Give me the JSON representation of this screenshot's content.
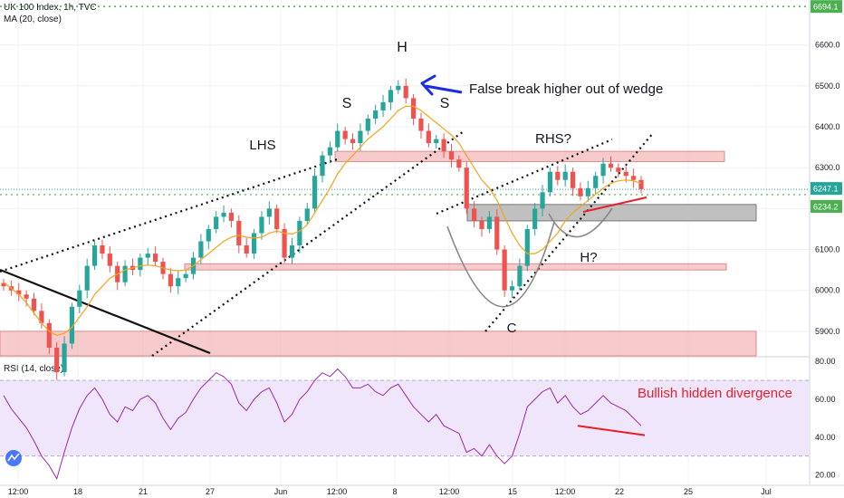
{
  "header": {
    "symbol_line": "UK 100 Index, 1h, TVC",
    "ma_line": "MA (20, close)",
    "rsi_line": "RSI (14, close)"
  },
  "colors": {
    "up": "#26a69a",
    "down": "#ef5350",
    "ma": "#f7a21b",
    "rsi": "#9c27b0",
    "zone_red": "#f4b9b9",
    "zone_gray": "#b9b9b9",
    "annotation_red": "#e8202a",
    "arrow_blue": "#1a2ee0"
  },
  "chart_data": [
    {
      "type": "candlestick",
      "title": "UK 100 Index, 1h, TVC",
      "ylim": [
        5840,
        6710
      ],
      "y_ticks": [
        "6600.0",
        "6500.0",
        "6400.0",
        "6300.0",
        "6200.0",
        "6100.0",
        "6000.0",
        "5900.0"
      ],
      "y_tick_values": [
        6600,
        6500,
        6400,
        6300,
        6200,
        6100,
        6000,
        5900
      ],
      "x_ticks": [
        "12:00",
        "18",
        "21",
        "27",
        "Jun",
        "12:00",
        "8",
        "12:00",
        "15",
        "12:00",
        "22",
        "25",
        "Jul"
      ],
      "price_labels": [
        {
          "text": "6694.1",
          "value": 6694.1,
          "color": "#4caf50"
        },
        {
          "text": "6247.1",
          "value": 6247.1,
          "color": "#26a69a"
        },
        {
          "text": "6234.2",
          "value": 6234.2,
          "color": "#4caf50"
        }
      ],
      "close_series": [
        6010,
        6000,
        5990,
        5980,
        5950,
        5920,
        5860,
        5800,
        5870,
        5960,
        6000,
        6060,
        6110,
        6090,
        6060,
        6020,
        6060,
        6050,
        6080,
        6090,
        6070,
        6040,
        6010,
        6030,
        6040,
        6080,
        6120,
        6150,
        6180,
        6190,
        6170,
        6110,
        6090,
        6140,
        6180,
        6200,
        6150,
        6080,
        6110,
        6170,
        6200,
        6280,
        6330,
        6350,
        6390,
        6370,
        6360,
        6390,
        6420,
        6440,
        6460,
        6490,
        6500,
        6470,
        6420,
        6390,
        6360,
        6370,
        6340,
        6320,
        6300,
        6200,
        6170,
        6150,
        6180,
        6100,
        6000,
        6010,
        6060,
        6150,
        6200,
        6240,
        6290,
        6270,
        6290,
        6250,
        6230,
        6250,
        6280,
        6310,
        6300,
        6290,
        6280,
        6270,
        6247.1
      ],
      "ma_series": [
        6020,
        6005,
        5990,
        5970,
        5945,
        5920,
        5900,
        5890,
        5895,
        5910,
        5935,
        5960,
        5990,
        6010,
        6030,
        6040,
        6050,
        6055,
        6060,
        6062,
        6060,
        6055,
        6050,
        6048,
        6050,
        6060,
        6075,
        6090,
        6105,
        6120,
        6130,
        6135,
        6130,
        6128,
        6130,
        6140,
        6145,
        6140,
        6138,
        6145,
        6160,
        6190,
        6220,
        6250,
        6285,
        6310,
        6330,
        6350,
        6370,
        6385,
        6400,
        6420,
        6440,
        6450,
        6450,
        6440,
        6425,
        6410,
        6395,
        6380,
        6360,
        6330,
        6300,
        6270,
        6250,
        6220,
        6180,
        6140,
        6110,
        6090,
        6090,
        6100,
        6120,
        6140,
        6170,
        6190,
        6205,
        6220,
        6235,
        6250,
        6262,
        6268,
        6270,
        6268,
        6262
      ],
      "zones": [
        {
          "label": "zone-upper-red",
          "from": 6315,
          "to": 6340,
          "color": "red"
        },
        {
          "label": "zone-mid-gray",
          "from": 6170,
          "to": 6210,
          "color": "gray"
        },
        {
          "label": "zone-low-red",
          "from": 6050,
          "to": 6065,
          "color": "red"
        },
        {
          "label": "zone-bottom-red",
          "from": 5840,
          "to": 5900,
          "color": "red"
        }
      ],
      "annotations": [
        "H",
        "S",
        "S",
        "LHS",
        "False break higher out of wedge",
        "RHS?",
        "H?",
        "C"
      ]
    },
    {
      "type": "line",
      "title": "RSI (14, close)",
      "ylim": [
        15,
        82
      ],
      "y_ticks": [
        "80.00",
        "60.00",
        "40.00",
        "20.00"
      ],
      "y_tick_values": [
        80,
        60,
        40,
        20
      ],
      "band": [
        30,
        70
      ],
      "values": [
        62,
        55,
        50,
        45,
        38,
        30,
        25,
        18,
        32,
        45,
        55,
        62,
        66,
        60,
        52,
        48,
        56,
        54,
        60,
        62,
        58,
        50,
        44,
        50,
        53,
        60,
        66,
        70,
        74,
        72,
        68,
        58,
        54,
        60,
        64,
        66,
        58,
        48,
        52,
        60,
        64,
        70,
        74,
        72,
        76,
        72,
        66,
        66,
        68,
        64,
        62,
        66,
        68,
        62,
        56,
        52,
        48,
        52,
        46,
        44,
        42,
        32,
        34,
        30,
        36,
        30,
        26,
        30,
        42,
        56,
        60,
        64,
        66,
        58,
        62,
        56,
        52,
        54,
        58,
        62,
        58,
        56,
        54,
        50,
        46
      ],
      "annotations": [
        "Bullish hidden divergence"
      ]
    }
  ]
}
